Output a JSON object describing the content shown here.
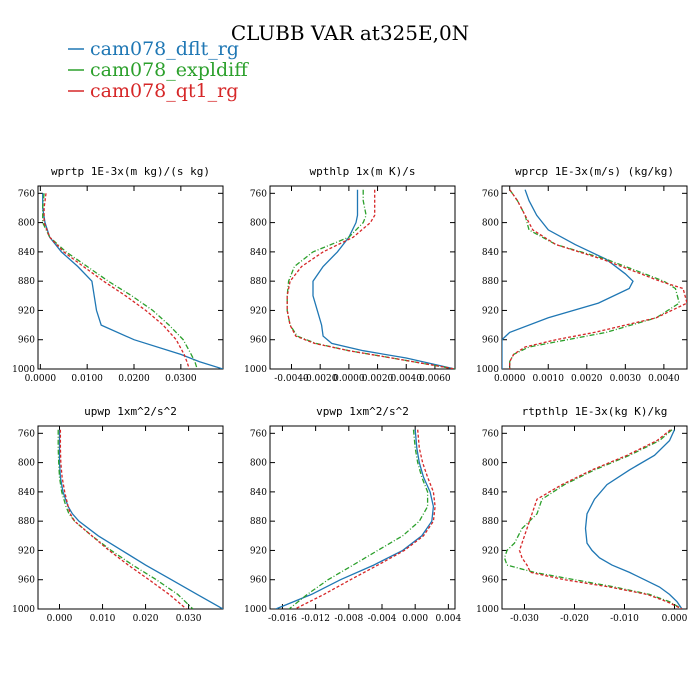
{
  "title": "CLUBB VAR at325E,0N",
  "legend": [
    {
      "name": "cam078_dflt_rg",
      "color": "#1f77b4"
    },
    {
      "name": "cam078_expldiff",
      "color": "#2ca02c"
    },
    {
      "name": "cam078_qt1_rg",
      "color": "#d62728"
    }
  ],
  "chart_data": [
    {
      "type": "line",
      "title": "wprtp  1E-3x(m kg)/(s kg)",
      "xlim": [
        -0.0005,
        0.039
      ],
      "xticks": [
        0.0,
        0.01,
        0.02,
        0.03
      ],
      "xtick_labels": [
        "0.0000",
        "0.0100",
        "0.0200",
        "0.0300"
      ],
      "ylim": [
        1000,
        750
      ],
      "yticks": [
        760,
        800,
        840,
        880,
        920,
        960,
        1000
      ],
      "y": [
        760,
        780,
        800,
        820,
        840,
        860,
        880,
        900,
        920,
        940,
        960,
        980,
        990,
        1000
      ],
      "series": [
        {
          "name": "cam078_dflt_rg",
          "x": [
            0.0005,
            0.0005,
            0.001,
            0.002,
            0.0045,
            0.008,
            0.011,
            0.0115,
            0.012,
            0.013,
            0.02,
            0.03,
            0.034,
            0.039
          ]
        },
        {
          "name": "cam078_expldiff",
          "x": [
            0.0008,
            0.0005,
            0.0005,
            0.002,
            0.0055,
            0.01,
            0.0145,
            0.0195,
            0.024,
            0.0275,
            0.0305,
            0.0322,
            0.033,
            0.0335
          ]
        },
        {
          "name": "cam078_qt1_rg",
          "x": [
            0.0012,
            0.0008,
            0.0008,
            0.002,
            0.005,
            0.0092,
            0.0135,
            0.0182,
            0.0225,
            0.0262,
            0.029,
            0.0307,
            0.0313,
            0.0318
          ]
        }
      ]
    },
    {
      "type": "line",
      "title": "wpthlp  1x(m K)/s",
      "xlim": [
        -0.0055,
        0.0074
      ],
      "xticks": [
        -0.004,
        -0.002,
        0.0,
        0.002,
        0.004,
        0.006
      ],
      "xtick_labels": [
        "-0.0040",
        "-0.0020",
        "0.0000",
        "0.0020",
        "0.0040",
        "0.0060"
      ],
      "ylim": [
        1000,
        750
      ],
      "yticks": [
        760,
        800,
        840,
        880,
        920,
        960,
        1000
      ],
      "y": [
        755,
        770,
        790,
        800,
        820,
        840,
        860,
        880,
        900,
        920,
        940,
        955,
        965,
        975,
        985,
        1000
      ],
      "series": [
        {
          "name": "cam078_dflt_rg",
          "x": [
            0.0006,
            0.0006,
            0.0006,
            0.0005,
            0.0,
            -0.0008,
            -0.0018,
            -0.0025,
            -0.0025,
            -0.0022,
            -0.0019,
            -0.0018,
            -0.0012,
            0.001,
            0.004,
            0.0074
          ]
        },
        {
          "name": "cam078_expldiff",
          "x": [
            0.001,
            0.001,
            0.0012,
            0.001,
            0.0,
            -0.0025,
            -0.0038,
            -0.0042,
            -0.0043,
            -0.0043,
            -0.0041,
            -0.0036,
            -0.0023,
            0.0,
            0.003,
            0.0074
          ]
        },
        {
          "name": "cam078_qt1_rg",
          "x": [
            0.0018,
            0.0018,
            0.0018,
            0.0015,
            0.0003,
            -0.0018,
            -0.0033,
            -0.0041,
            -0.0043,
            -0.0043,
            -0.0041,
            -0.0037,
            -0.0024,
            0.0,
            0.003,
            0.0074
          ]
        }
      ]
    },
    {
      "type": "line",
      "title": "wprcp  1E-3x(m/s) (kg/kg)",
      "xlim": [
        -0.0002,
        0.0046
      ],
      "xticks": [
        0.0,
        0.001,
        0.002,
        0.003,
        0.004
      ],
      "xtick_labels": [
        "0.0000",
        "0.0010",
        "0.0020",
        "0.0030",
        "0.0040"
      ],
      "ylim": [
        1000,
        750
      ],
      "yticks": [
        760,
        800,
        840,
        880,
        920,
        960,
        1000
      ],
      "y": [
        755,
        770,
        790,
        810,
        830,
        850,
        870,
        880,
        890,
        910,
        930,
        950,
        960,
        970,
        980,
        990,
        1000
      ],
      "series": [
        {
          "name": "cam078_dflt_rg",
          "x": [
            0.0004,
            0.0005,
            0.0007,
            0.001,
            0.0017,
            0.0025,
            0.003,
            0.0032,
            0.0031,
            0.0023,
            0.001,
            0.0,
            -0.0002,
            -0.0002,
            -0.0002,
            -0.0002,
            -0.0002
          ]
        },
        {
          "name": "cam078_expldiff",
          "x": [
            0.0,
            0.0002,
            0.0004,
            0.0005,
            0.0012,
            0.0025,
            0.0035,
            0.004,
            0.0043,
            0.0044,
            0.0038,
            0.0025,
            0.0015,
            0.0005,
            0.0001,
            0.0,
            0.0
          ]
        },
        {
          "name": "cam078_qt1_rg",
          "x": [
            0.0,
            0.0002,
            0.0004,
            0.0006,
            0.0012,
            0.0024,
            0.0034,
            0.0039,
            0.0045,
            0.0046,
            0.0038,
            0.0022,
            0.0012,
            0.0004,
            0.0001,
            0.0,
            0.0
          ]
        }
      ]
    },
    {
      "type": "line",
      "title": "upwp  1xm^2/s^2",
      "xlim": [
        -0.005,
        0.038
      ],
      "xticks": [
        0.0,
        0.01,
        0.02,
        0.03
      ],
      "xtick_labels": [
        "0.000",
        "0.010",
        "0.020",
        "0.030"
      ],
      "ylim": [
        1000,
        750
      ],
      "yticks": [
        760,
        800,
        840,
        880,
        920,
        960,
        1000
      ],
      "y": [
        755,
        780,
        800,
        820,
        840,
        860,
        870,
        880,
        900,
        920,
        940,
        960,
        980,
        1000
      ],
      "series": [
        {
          "name": "cam078_dflt_rg",
          "x": [
            0.0,
            0.0,
            0.0,
            0.0002,
            0.0008,
            0.002,
            0.003,
            0.0045,
            0.009,
            0.0145,
            0.02,
            0.026,
            0.032,
            0.038
          ]
        },
        {
          "name": "cam078_expldiff",
          "x": [
            -0.0003,
            -0.0003,
            -0.0002,
            0.0,
            0.0005,
            0.0015,
            0.0022,
            0.0035,
            0.0075,
            0.012,
            0.017,
            0.0225,
            0.0275,
            0.031
          ]
        },
        {
          "name": "cam078_qt1_rg",
          "x": [
            0.0002,
            0.0002,
            0.0003,
            0.0006,
            0.0012,
            0.002,
            0.0025,
            0.0035,
            0.0075,
            0.0115,
            0.016,
            0.0208,
            0.0255,
            0.0295
          ]
        }
      ]
    },
    {
      "type": "line",
      "title": "vpwp  1xm^2/s^2",
      "xlim": [
        -0.0175,
        0.0048
      ],
      "xticks": [
        -0.016,
        -0.012,
        -0.008,
        -0.004,
        0.0,
        0.004
      ],
      "xtick_labels": [
        "-0.016",
        "-0.012",
        "-0.008",
        "-0.004",
        "0.000",
        "0.004"
      ],
      "ylim": [
        1000,
        750
      ],
      "yticks": [
        760,
        800,
        840,
        880,
        920,
        960,
        1000
      ],
      "y": [
        755,
        780,
        800,
        820,
        840,
        860,
        880,
        900,
        920,
        940,
        960,
        980,
        1000
      ],
      "series": [
        {
          "name": "cam078_dflt_rg",
          "x": [
            0.0,
            0.0002,
            0.0005,
            0.001,
            0.0018,
            0.0022,
            0.002,
            0.0008,
            -0.0015,
            -0.005,
            -0.009,
            -0.0125,
            -0.0168
          ]
        },
        {
          "name": "cam078_expldiff",
          "x": [
            -0.0002,
            0.0,
            0.0003,
            0.0008,
            0.0015,
            0.0015,
            0.0005,
            -0.0015,
            -0.0045,
            -0.0075,
            -0.0105,
            -0.013,
            -0.0152
          ]
        },
        {
          "name": "cam078_qt1_rg",
          "x": [
            0.0003,
            0.0005,
            0.0009,
            0.0015,
            0.0022,
            0.0024,
            0.0022,
            0.001,
            -0.0013,
            -0.0045,
            -0.0078,
            -0.011,
            -0.0145
          ]
        }
      ]
    },
    {
      "type": "line",
      "title": "rtpthlp  1E-3x(kg K)/kg",
      "xlim": [
        -0.0345,
        0.0025
      ],
      "xticks": [
        -0.03,
        -0.02,
        -0.01,
        0.0
      ],
      "xtick_labels": [
        "-0.030",
        "-0.020",
        "-0.010",
        "0.000"
      ],
      "ylim": [
        1000,
        750
      ],
      "yticks": [
        760,
        800,
        840,
        880,
        920,
        960,
        1000
      ],
      "y": [
        755,
        770,
        790,
        810,
        830,
        850,
        870,
        890,
        910,
        920,
        930,
        940,
        950,
        960,
        970,
        980,
        990,
        1000
      ],
      "series": [
        {
          "name": "cam078_dflt_rg",
          "x": [
            0.0,
            -0.001,
            -0.004,
            -0.009,
            -0.0135,
            -0.016,
            -0.0175,
            -0.0178,
            -0.0175,
            -0.0165,
            -0.015,
            -0.0125,
            -0.009,
            -0.006,
            -0.003,
            -0.001,
            0.0005,
            0.0015
          ]
        },
        {
          "name": "cam078_expldiff",
          "x": [
            -0.0005,
            -0.003,
            -0.009,
            -0.016,
            -0.022,
            -0.0265,
            -0.0275,
            -0.0305,
            -0.032,
            -0.0335,
            -0.034,
            -0.0335,
            -0.028,
            -0.02,
            -0.012,
            -0.005,
            -0.001,
            0.0015
          ]
        },
        {
          "name": "cam078_qt1_rg",
          "x": [
            -0.0008,
            -0.0035,
            -0.0095,
            -0.0165,
            -0.0225,
            -0.0275,
            -0.0285,
            -0.0295,
            -0.0305,
            -0.031,
            -0.0305,
            -0.0295,
            -0.0288,
            -0.022,
            -0.013,
            -0.0055,
            -0.0015,
            0.0015
          ]
        }
      ]
    }
  ]
}
